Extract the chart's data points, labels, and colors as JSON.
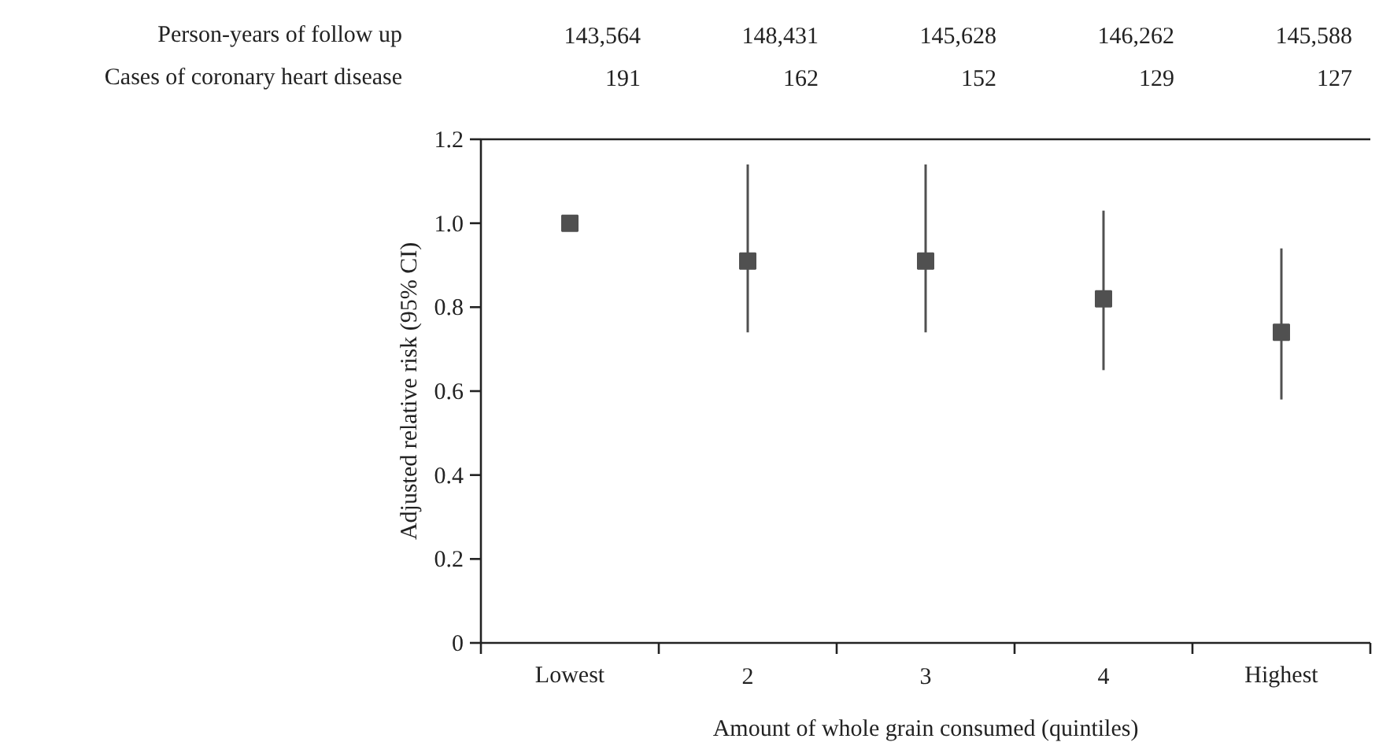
{
  "chart_data": {
    "type": "scatter",
    "xlabel": "Amount of whole grain consumed (quintiles)",
    "ylabel": "Adjusted relative risk (95% CI)",
    "categories": [
      "Lowest",
      "2",
      "3",
      "4",
      "Highest"
    ],
    "series": [
      {
        "color": "#505050",
        "values": [
          1.0,
          0.91,
          0.91,
          0.82,
          0.74
        ],
        "errors": [
          null,
          [
            0.74,
            1.14
          ],
          [
            0.74,
            1.14
          ],
          [
            0.65,
            1.03
          ],
          [
            0.58,
            0.94
          ]
        ]
      }
    ],
    "marker": "square",
    "grid": false,
    "ylim": [
      0,
      1.2
    ],
    "yticks": [
      0,
      0.2,
      0.4,
      0.6,
      0.8,
      {
        "value": 1.0,
        "label": "1.0"
      },
      1.2
    ],
    "annotations": [
      "Person-years of follow up",
      "143,564",
      "148,431",
      "145,628",
      "146,262",
      "145,588",
      "Cases of coronary heart disease",
      "191",
      "162",
      "152",
      "129",
      "127"
    ]
  }
}
